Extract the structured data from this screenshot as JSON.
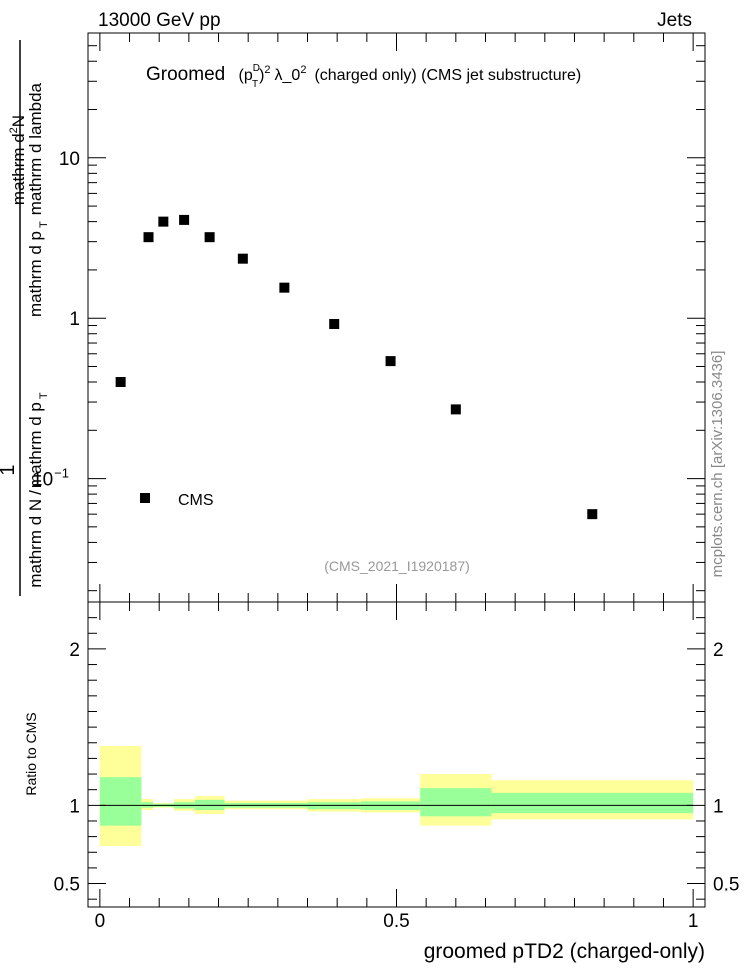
{
  "header": {
    "left": "13000 GeV pp",
    "right": "Jets"
  },
  "title": {
    "prefix": "Groomed",
    "p": "(p",
    "sup_d": "D",
    "sub_t": "T",
    "close": ")",
    "sup_2": "2",
    "lambda": "λ_0",
    "sup_2b": "2",
    "suffix": "(charged only) (CMS jet substructure)"
  },
  "ylabel_main": {
    "numerator": "1",
    "denominator": "mathrm d N / mathrm d p_T",
    "deriv_num": "mathrm d²N",
    "deriv_den": "mathrm d p_T mathrm d lambda"
  },
  "ylabel_main_text": {
    "num": "1",
    "den": "mathrm d N",
    "den2": "mathrm d p",
    "den2sub": "T",
    "rhs_num": "mathrm d",
    "rhs_num_sup": "2",
    "rhs_num_tail": "N",
    "rhs_den": "mathrm d p",
    "rhs_den_sub": "T",
    "rhs_den_tail": "mathrm d lambda"
  },
  "ylabel_ratio": "Ratio to CMS",
  "xlabel": "groomed pTD2 (charged-only)",
  "watermark": "mcplots.cern.ch [arXiv:1306.3436]",
  "analysis": "(CMS_2021_I1920187)",
  "legend": [
    {
      "label": "CMS",
      "marker": "square",
      "color": "#000000"
    }
  ],
  "colors": {
    "band_outer": "#ffff99",
    "band_inner": "#99ff99",
    "data": "#000000"
  },
  "chart_data": [
    {
      "type": "scatter",
      "yscale": "log",
      "xlim": [
        -0.02,
        1.02
      ],
      "ylim": [
        0.017,
        60
      ],
      "yticks_major": [
        {
          "value": 0.1,
          "label": "10",
          "sup": "−1"
        },
        {
          "value": 1,
          "label": "1"
        },
        {
          "value": 10,
          "label": "10"
        }
      ],
      "series": [
        {
          "name": "CMS",
          "x": [
            0.035,
            0.082,
            0.107,
            0.142,
            0.185,
            0.241,
            0.311,
            0.395,
            0.49,
            0.6,
            0.83
          ],
          "y": [
            0.4,
            3.2,
            4.0,
            4.1,
            3.2,
            2.35,
            1.55,
            0.92,
            0.54,
            0.27,
            0.06
          ]
        }
      ]
    },
    {
      "type": "area",
      "xlim": [
        -0.02,
        1.02
      ],
      "ylim": [
        0.35,
        2.3
      ],
      "yticks_major": [
        {
          "value": 0.5,
          "label": "0.5"
        },
        {
          "value": 1,
          "label": "1"
        },
        {
          "value": 2,
          "label": "2"
        }
      ],
      "xticks_major": [
        {
          "value": 0,
          "label": "0"
        },
        {
          "value": 0.5,
          "label": "0.5"
        },
        {
          "value": 1,
          "label": "1"
        }
      ],
      "bins": [
        {
          "x0": 0.0,
          "x1": 0.07,
          "inner": [
            0.87,
            1.18
          ],
          "outer": [
            0.74,
            1.38
          ]
        },
        {
          "x0": 0.07,
          "x1": 0.09,
          "inner": [
            0.985,
            1.02
          ],
          "outer": [
            0.97,
            1.04
          ]
        },
        {
          "x0": 0.09,
          "x1": 0.125,
          "inner": [
            0.99,
            1.01
          ],
          "outer": [
            0.985,
            1.015
          ]
        },
        {
          "x0": 0.125,
          "x1": 0.16,
          "inner": [
            0.98,
            1.02
          ],
          "outer": [
            0.965,
            1.04
          ]
        },
        {
          "x0": 0.16,
          "x1": 0.21,
          "inner": [
            0.97,
            1.035
          ],
          "outer": [
            0.945,
            1.06
          ]
        },
        {
          "x0": 0.21,
          "x1": 0.27,
          "inner": [
            0.985,
            1.015
          ],
          "outer": [
            0.975,
            1.03
          ]
        },
        {
          "x0": 0.27,
          "x1": 0.35,
          "inner": [
            0.985,
            1.015
          ],
          "outer": [
            0.975,
            1.03
          ]
        },
        {
          "x0": 0.35,
          "x1": 0.44,
          "inner": [
            0.975,
            1.02
          ],
          "outer": [
            0.96,
            1.04
          ]
        },
        {
          "x0": 0.44,
          "x1": 0.54,
          "inner": [
            0.97,
            1.025
          ],
          "outer": [
            0.955,
            1.045
          ]
        },
        {
          "x0": 0.54,
          "x1": 0.66,
          "inner": [
            0.93,
            1.11
          ],
          "outer": [
            0.87,
            1.2
          ]
        },
        {
          "x0": 0.66,
          "x1": 1.0,
          "inner": [
            0.95,
            1.08
          ],
          "outer": [
            0.91,
            1.16
          ]
        }
      ]
    }
  ]
}
